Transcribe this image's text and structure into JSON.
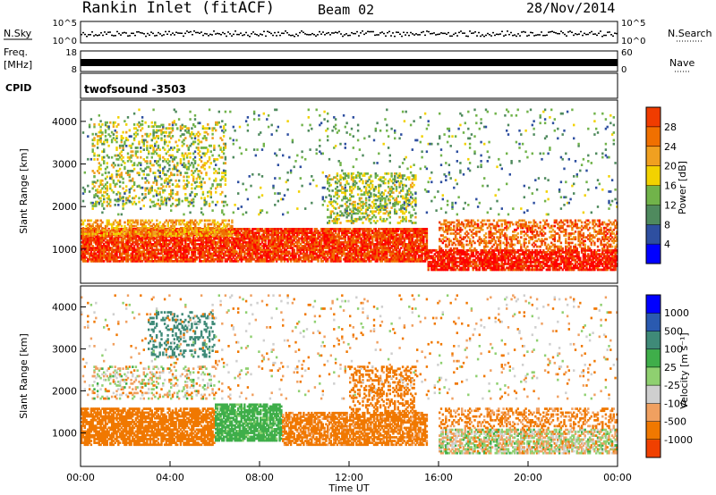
{
  "header": {
    "station": "Rankin Inlet (fitACF)",
    "beam": "Beam 02",
    "date": "28/Nov/2014"
  },
  "top_panels": {
    "nsky_label": "N.Sky",
    "nsky_ticks": [
      "10^5",
      "10^0"
    ],
    "nsearch_label": "N.Search",
    "nsearch_ticks": [
      "10^5",
      "10^0"
    ],
    "freq_label_1": "Freq.",
    "freq_label_2": "[MHz]",
    "freq_ticks": [
      "18",
      "8"
    ],
    "nave_label": "Nave",
    "nave_ticks": [
      "60",
      "0"
    ],
    "cpid_label": "CPID",
    "cpid_value": "twofsound  -3503"
  },
  "colors": {
    "power_scale": [
      "#0000ff",
      "#2e4fa0",
      "#4f8a5e",
      "#71b34a",
      "#f2d200",
      "#f0a020",
      "#f07000",
      "#f03c00",
      "#ff0000"
    ],
    "velocity_scale": [
      "#ff0000",
      "#f04000",
      "#f07800",
      "#f0a060",
      "#cfcfcf",
      "#8fd070",
      "#3fae4a",
      "#3f8a78",
      "#2a5ab0",
      "#0000ff"
    ]
  },
  "chart_data": [
    {
      "type": "heatmap",
      "panel": "power",
      "ylabel": "Slant Range [km]",
      "y_ticks": [
        "1000",
        "2000",
        "3000",
        "4000"
      ],
      "y_tick_values": [
        1000,
        2000,
        3000,
        4000
      ],
      "ylim": [
        200,
        4500
      ],
      "xlim_hours": [
        0,
        24
      ],
      "colorbar_label": "Power [dB]",
      "colorbar_ticks": [
        "4",
        "8",
        "12",
        "16",
        "20",
        "24",
        "28"
      ],
      "colorbar_range": [
        0,
        32
      ],
      "regions": [
        {
          "t0": 0,
          "t1": 15.5,
          "r0": 700,
          "r1": 1500,
          "value": 27,
          "density": 0.85
        },
        {
          "t0": 0,
          "t1": 6.8,
          "r0": 1300,
          "r1": 1700,
          "value": 20,
          "density": 0.55
        },
        {
          "t0": 15.5,
          "t1": 24,
          "r0": 500,
          "r1": 1000,
          "value": 29,
          "density": 0.8
        },
        {
          "t0": 16,
          "t1": 24,
          "r0": 1000,
          "r1": 1700,
          "value": 24,
          "density": 0.45
        },
        {
          "t0": 0.5,
          "t1": 6.5,
          "r0": 2000,
          "r1": 4000,
          "value": 15,
          "density": 0.22
        },
        {
          "t0": 11,
          "t1": 15,
          "r0": 1600,
          "r1": 2800,
          "value": 14,
          "density": 0.35
        },
        {
          "t0": 0,
          "t1": 24,
          "r0": 1800,
          "r1": 4300,
          "value": 10,
          "density": 0.04
        }
      ]
    },
    {
      "type": "heatmap",
      "panel": "velocity",
      "ylabel": "Slant Range [km]",
      "y_ticks": [
        "1000",
        "2000",
        "3000",
        "4000"
      ],
      "y_tick_values": [
        1000,
        2000,
        3000,
        4000
      ],
      "ylim": [
        200,
        4500
      ],
      "xlim_hours": [
        0,
        24
      ],
      "xlabel": "Time UT",
      "x_ticks": [
        "00:00",
        "04:00",
        "08:00",
        "12:00",
        "16:00",
        "20:00",
        "00:00"
      ],
      "colorbar_label": "Velocity [m s⁻¹]",
      "colorbar_ticks": [
        "1000",
        "500",
        "100",
        "25",
        "-25",
        "-100",
        "-500",
        "-1000"
      ],
      "regions": [
        {
          "t0": 0,
          "t1": 6,
          "r0": 700,
          "r1": 1600,
          "value": -300,
          "density": 0.75
        },
        {
          "t0": 6,
          "t1": 9,
          "r0": 800,
          "r1": 1700,
          "value": 200,
          "density": 0.8
        },
        {
          "t0": 9,
          "t1": 15.5,
          "r0": 700,
          "r1": 1500,
          "value": -200,
          "density": 0.7
        },
        {
          "t0": 16,
          "t1": 24,
          "r0": 500,
          "r1": 1100,
          "value": 0,
          "density": 0.65
        },
        {
          "t0": 16,
          "t1": 24,
          "r0": 1100,
          "r1": 1600,
          "value": -150,
          "density": 0.35
        },
        {
          "t0": 3,
          "t1": 6,
          "r0": 2800,
          "r1": 3900,
          "value": 700,
          "density": 0.25
        },
        {
          "t0": 0.5,
          "t1": 6,
          "r0": 1800,
          "r1": 2600,
          "value": 0,
          "density": 0.22
        },
        {
          "t0": 12,
          "t1": 15,
          "r0": 1500,
          "r1": 2600,
          "value": -300,
          "density": 0.35
        },
        {
          "t0": 0,
          "t1": 24,
          "r0": 1800,
          "r1": 4300,
          "value": -60,
          "density": 0.04
        }
      ]
    }
  ]
}
